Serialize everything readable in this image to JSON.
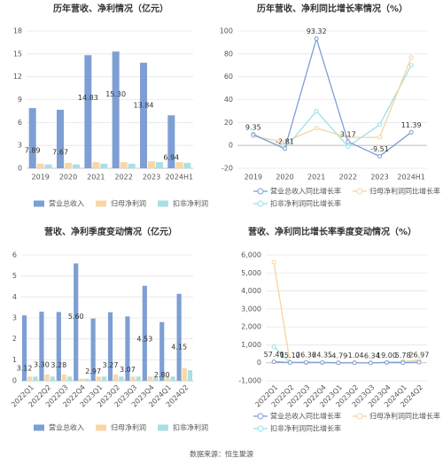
{
  "chart_data": [
    {
      "type": "bar",
      "title": "历年营收、净利情况（亿元）",
      "categories": [
        "2019",
        "2020",
        "2021",
        "2022",
        "2023",
        "2024H1"
      ],
      "series": [
        {
          "name": "营业总收入",
          "color": "#7e9fd4",
          "values": [
            7.89,
            7.67,
            14.83,
            15.3,
            13.84,
            6.94
          ],
          "value_labels": [
            "7.89",
            "7.67",
            "14.83",
            "15.30",
            "13.84",
            "6.94"
          ]
        },
        {
          "name": "归母净利润",
          "color": "#f8d7a6",
          "values": [
            0.6,
            0.7,
            0.8,
            0.8,
            0.9,
            0.8
          ]
        },
        {
          "name": "扣非净利润",
          "color": "#a7e1e4",
          "values": [
            0.5,
            0.5,
            0.6,
            0.6,
            0.8,
            0.7
          ]
        }
      ],
      "ylim": [
        0,
        18
      ],
      "yticks": [
        0,
        3,
        6,
        9,
        12,
        15,
        18
      ],
      "grid": true
    },
    {
      "type": "line",
      "title": "历年营收、净利同比增长率情况（%）",
      "categories": [
        "2019",
        "2020",
        "2021",
        "2022",
        "2023",
        "2024H1"
      ],
      "series": [
        {
          "name": "营业总收入同比增长率",
          "color": "#7e9fd4",
          "values": [
            9.35,
            -2.81,
            93.32,
            3.17,
            -9.51,
            11.39
          ],
          "value_labels": [
            "9.35",
            "-2.81",
            "93.32",
            "3.17",
            "-9.51",
            "11.39"
          ]
        },
        {
          "name": "归母净利润同比增长率",
          "color": "#f8d3a0",
          "values": [
            8,
            3,
            15,
            7,
            7,
            77
          ]
        },
        {
          "name": "扣非净利润同比增长率",
          "color": "#99e2e6",
          "values": [
            10,
            -3,
            30,
            -1,
            18,
            70
          ]
        }
      ],
      "ylim": [
        -20,
        100
      ],
      "yticks": [
        -20,
        0,
        20,
        40,
        60,
        80,
        100
      ],
      "grid": true
    },
    {
      "type": "bar",
      "title": "营收、净利季度变动情况（亿元）",
      "categories": [
        "2022Q1",
        "2022Q2",
        "2022Q3",
        "2022Q4",
        "2023Q1",
        "2023Q2",
        "2023Q3",
        "2023Q4",
        "2024Q1",
        "2024Q2"
      ],
      "series": [
        {
          "name": "营业总收入",
          "color": "#7e9fd4",
          "values": [
            3.12,
            3.3,
            3.28,
            5.6,
            2.97,
            3.27,
            3.07,
            4.53,
            2.8,
            4.15
          ],
          "value_labels": [
            "3.12",
            "3.30",
            "3.28",
            "5.60",
            "2.97",
            "3.27",
            "3.07",
            "4.53",
            "2.80",
            "4.15"
          ]
        },
        {
          "name": "归母净利润",
          "color": "#f8d7a6",
          "values": [
            0.2,
            0.3,
            0.3,
            0.1,
            0.2,
            0.3,
            0.2,
            0.2,
            0.2,
            0.6
          ]
        },
        {
          "name": "扣非净利润",
          "color": "#a7e1e4",
          "values": [
            0.2,
            0.2,
            0.2,
            0.1,
            0.2,
            0.2,
            0.2,
            0.2,
            0.2,
            0.5
          ]
        }
      ],
      "ylim": [
        0,
        6
      ],
      "yticks": [
        0,
        1,
        2,
        3,
        4,
        5,
        6
      ],
      "grid": true
    },
    {
      "type": "line",
      "title": "营收、净利同比增长率季度变动情况（%）",
      "categories": [
        "2022Q1",
        "2022Q2",
        "2022Q3",
        "2022Q4",
        "2023Q1",
        "2023Q2",
        "2023Q3",
        "2023Q4",
        "2024Q1",
        "2024Q2"
      ],
      "series": [
        {
          "name": "营业总收入同比增长率",
          "color": "#7e9fd4",
          "values": [
            57.4,
            15.1,
            26.36,
            24.35,
            -4.79,
            -1.04,
            -6.34,
            19,
            5.78,
            26.97
          ],
          "value_labels": [
            "57.40",
            "15.10",
            "26.36",
            "24.35",
            "-4.79",
            "-1.04",
            "-6.34",
            "19.00",
            "5.78",
            "26.97"
          ]
        },
        {
          "name": "归母净利润同比增长率",
          "color": "#f8d3a0",
          "values": [
            5600,
            20,
            10,
            5,
            10,
            15,
            5,
            10,
            60,
            150
          ]
        },
        {
          "name": "扣非净利润同比增长率",
          "color": "#99e2e6",
          "values": [
            900,
            10,
            5,
            -5,
            10,
            10,
            5,
            15,
            80,
            120
          ]
        }
      ],
      "ylim": [
        -1000,
        6000
      ],
      "yticks": [
        {
          "value": -1000,
          "label": "-1,000"
        },
        0,
        {
          "value": 1000,
          "label": "1,000"
        },
        {
          "value": 2000,
          "label": "2,000"
        },
        {
          "value": 3000,
          "label": "3,000"
        },
        {
          "value": 4000,
          "label": "4,000"
        },
        {
          "value": 5000,
          "label": "5,000"
        },
        {
          "value": 6000,
          "label": "6,000"
        }
      ],
      "grid": true
    }
  ],
  "source": "数据来源：恒生聚源"
}
